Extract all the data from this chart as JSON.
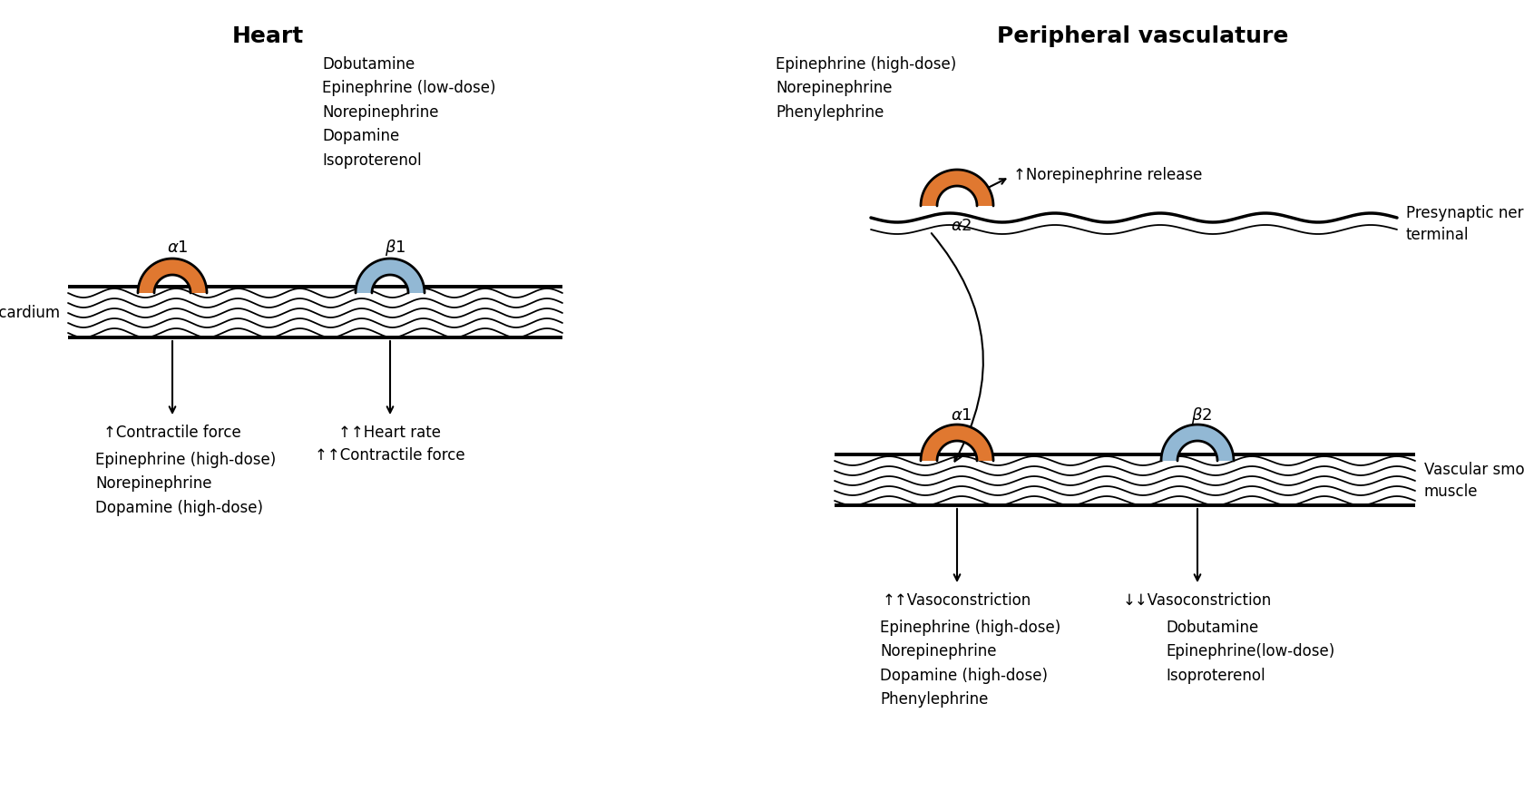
{
  "title_left": "Heart",
  "title_right": "Peripheral vasculature",
  "bg_color": "#ffffff",
  "orange_color": "#E07830",
  "blue_color": "#92B8D4",
  "text_color": "#000000",
  "figsize": [
    16.81,
    8.83
  ],
  "dpi": 100,
  "heart_beta1_drugs": "Dobutamine\nEpinephrine (low-dose)\nNorepinephrine\nDopamine\nIsoproterenol",
  "heart_alpha1_effect": "↑Contractile force",
  "heart_alpha1_drugs": "Epinephrine (high-dose)\nNorepinephrine\nDopamine (high-dose)",
  "heart_beta1_effect": "↑↑Heart rate\n↑↑Contractile force",
  "periph_alpha2_drugs": "Epinephrine (high-dose)\nNorepinephrine\nPhenylephrine",
  "periph_alpha2_effect": "↑Norepinephrine release",
  "periph_nerve_label": "Presynaptic nerve\nterminal",
  "periph_alpha1_effect": "↑↑Vasoconstriction",
  "periph_alpha1_drugs": "Epinephrine (high-dose)\nNorepinephrine\nDopamine (high-dose)\nPhenylephrine",
  "periph_beta2_effect": "↓↓Vasoconstriction",
  "periph_beta2_drugs": "Dobutamine\nEpinephrine(low-dose)\nIsoproterenol",
  "periph_smooth_label": "Vascular smooth\nmuscle",
  "myocardium_label": "Myocardium"
}
